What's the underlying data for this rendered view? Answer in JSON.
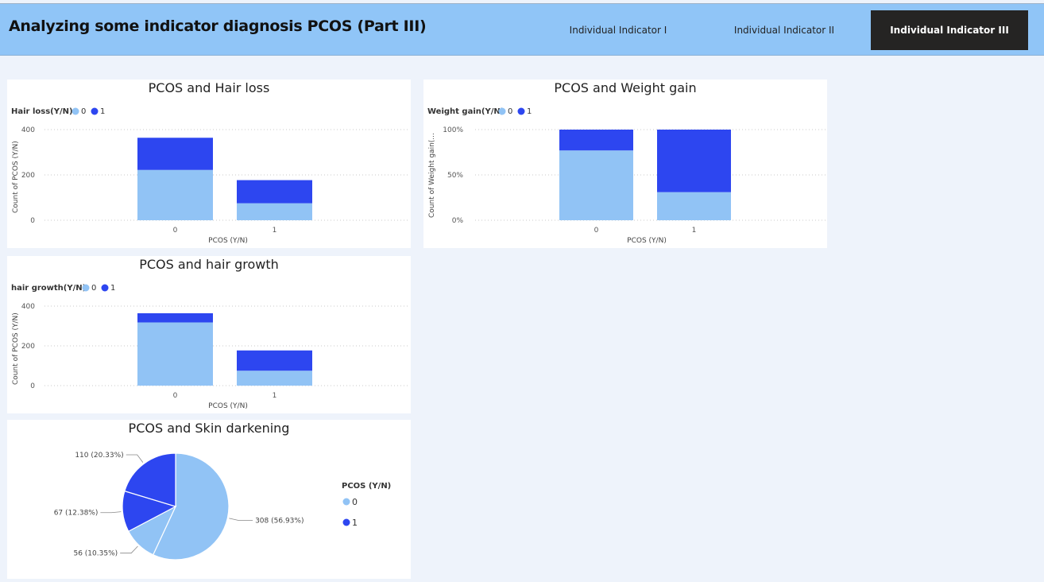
{
  "page": {
    "title": "Analyzing some indicator diagnosis PCOS (Part III)",
    "tabs": [
      {
        "label": "Individual Indicator I",
        "active": false
      },
      {
        "label": "Individual Indicator II",
        "active": false
      },
      {
        "label": "Individual Indicator III",
        "active": true
      }
    ]
  },
  "colors": {
    "series0": "#91c3f5",
    "series1": "#2d46f0",
    "header": "#90c5f7",
    "active_tab": "#252423"
  },
  "chart_data": [
    {
      "id": "hair_loss",
      "type": "bar",
      "stacked": true,
      "title": "PCOS and Hair loss",
      "legend_title": "Hair loss(Y/N)",
      "legend": [
        "0",
        "1"
      ],
      "categories": [
        "0",
        "1"
      ],
      "series": [
        {
          "name": "0",
          "values": [
            222,
            75
          ]
        },
        {
          "name": "1",
          "values": [
            142,
            102
          ]
        }
      ],
      "xlabel": "PCOS (Y/N)",
      "ylabel": "Count of PCOS (Y/N)",
      "ylim": [
        0,
        400
      ],
      "yticks": [
        "0",
        "200",
        "400"
      ],
      "yticks_values": [
        0,
        200,
        400
      ],
      "grid": true
    },
    {
      "id": "weight_gain",
      "type": "bar",
      "stacked": true,
      "title": "PCOS and Weight gain",
      "legend_title": "Weight gain(Y/N)",
      "legend": [
        "0",
        "1"
      ],
      "categories": [
        "0",
        "1"
      ],
      "series": [
        {
          "name": "0",
          "values": [
            77,
            31
          ]
        },
        {
          "name": "1",
          "values": [
            23,
            69
          ]
        }
      ],
      "xlabel": "PCOS (Y/N)",
      "ylabel": "Count of Weight gain(...",
      "ylim": [
        0,
        100
      ],
      "yticks": [
        "0%",
        "50%",
        "100%"
      ],
      "yticks_values": [
        0,
        50,
        100
      ],
      "grid": true
    },
    {
      "id": "hair_growth",
      "type": "bar",
      "stacked": true,
      "title": "PCOS and hair growth",
      "legend_title": "hair growth(Y/N)",
      "legend": [
        "0",
        "1"
      ],
      "categories": [
        "0",
        "1"
      ],
      "series": [
        {
          "name": "0",
          "values": [
            318,
            75
          ]
        },
        {
          "name": "1",
          "values": [
            46,
            102
          ]
        }
      ],
      "xlabel": "PCOS (Y/N)",
      "ylabel": "Count of PCOS (Y/N)",
      "ylim": [
        0,
        400
      ],
      "yticks": [
        "0",
        "200",
        "400"
      ],
      "yticks_values": [
        0,
        200,
        400
      ],
      "grid": true
    },
    {
      "id": "skin_darkening",
      "type": "pie",
      "title": "PCOS and Skin darkening",
      "legend_title": "PCOS (Y/N)",
      "legend": [
        "0",
        "1"
      ],
      "slices": [
        {
          "series": "0",
          "value": 308,
          "label": "308 (56.93%)"
        },
        {
          "series": "0",
          "value": 56,
          "label": "56 (10.35%)"
        },
        {
          "series": "1",
          "value": 67,
          "label": "67 (12.38%)"
        },
        {
          "series": "1",
          "value": 110,
          "label": "110 (20.33%)"
        }
      ]
    }
  ]
}
